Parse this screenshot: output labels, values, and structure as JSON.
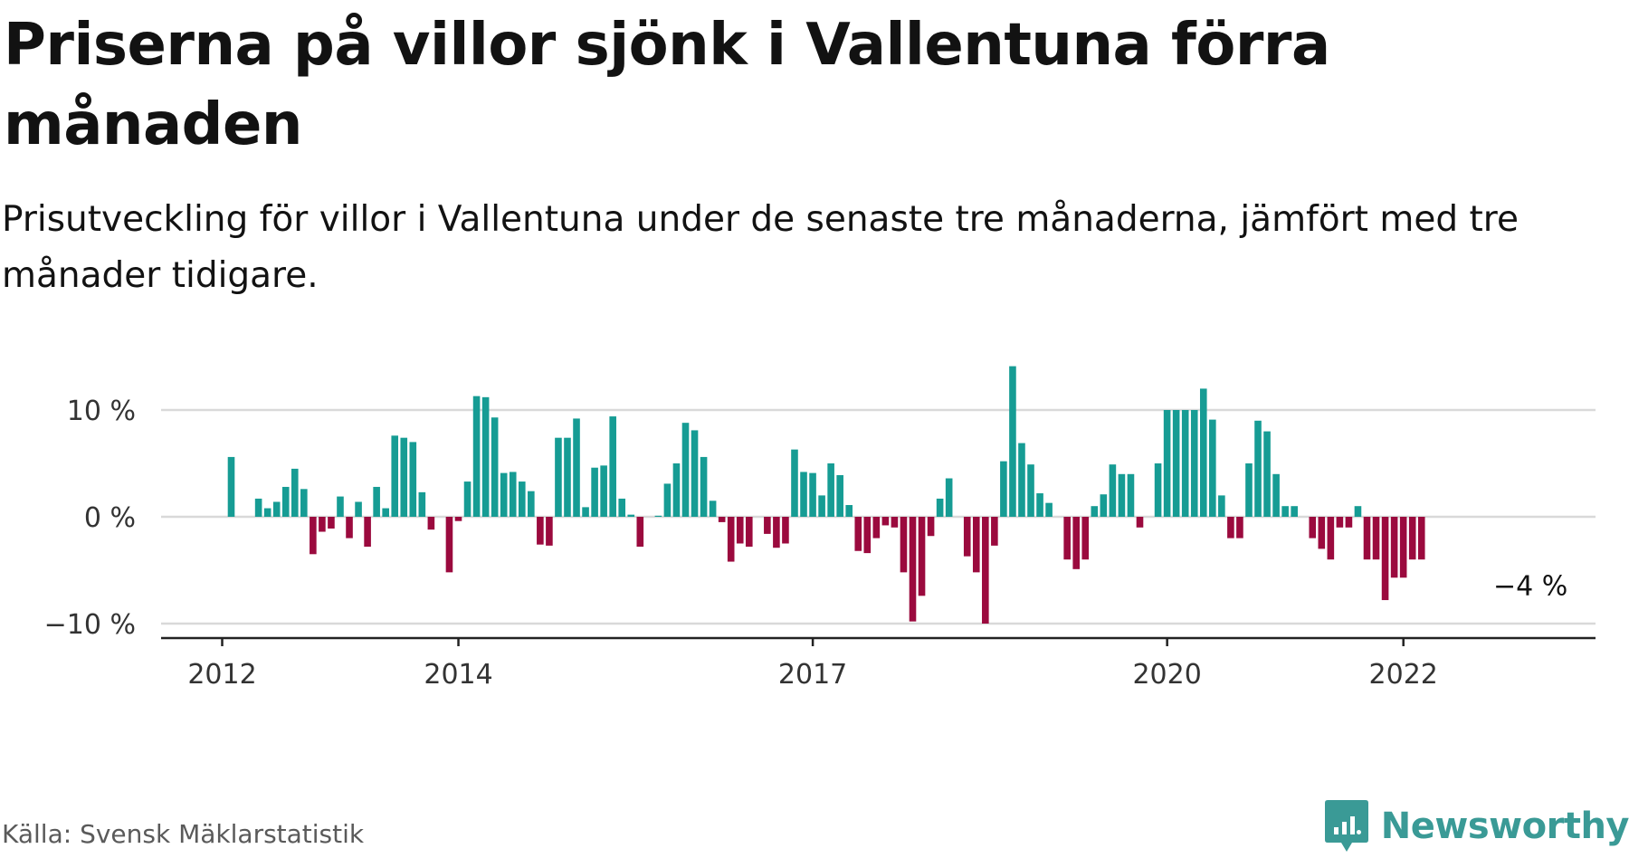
{
  "title": "Priserna på villor sjönk i Vallentuna förra månaden",
  "subtitle": "Prisutveckling för villor i Vallentuna under de senaste tre månaderna, jämfört med tre månader tidigare.",
  "source": "Källa: Svensk Mäklarstatistik",
  "brand": {
    "name": "Newsworthy",
    "icon": "newsworthy-logo-icon"
  },
  "colors": {
    "positive": "#169c94",
    "negative": "#9b0a3e",
    "grid": "#d9d9d9",
    "axis": "#222222",
    "brand": "#3a9a96"
  },
  "chart_data": {
    "type": "bar",
    "ylim": [
      -11.5,
      15
    ],
    "y_ticks": [
      {
        "value": 10,
        "label": "10 %"
      },
      {
        "value": 0,
        "label": "0 %"
      },
      {
        "value": -10,
        "label": "−10 %"
      }
    ],
    "x_ticks": [
      {
        "index": 0,
        "label": "2012"
      },
      {
        "index": 26,
        "label": "2014"
      },
      {
        "index": 65,
        "label": "2017"
      },
      {
        "index": 104,
        "label": "2020"
      },
      {
        "index": 130,
        "label": "2022"
      }
    ],
    "annotation": {
      "index": 139,
      "label": "−4 %"
    },
    "grid": true,
    "values": [
      5.6,
      null,
      null,
      1.7,
      0.8,
      1.4,
      2.8,
      4.5,
      2.6,
      -3.5,
      -1.4,
      -1.1,
      1.9,
      -2.0,
      1.4,
      -2.8,
      2.8,
      0.8,
      7.6,
      7.4,
      7.0,
      2.3,
      -1.2,
      null,
      -5.2,
      -0.4,
      3.3,
      11.3,
      11.2,
      9.3,
      4.1,
      4.2,
      3.3,
      2.4,
      -2.6,
      -2.7,
      7.4,
      7.4,
      9.2,
      0.9,
      4.6,
      4.8,
      9.4,
      1.7,
      0.2,
      -2.8,
      null,
      0.1,
      3.1,
      5.0,
      8.8,
      8.1,
      5.6,
      1.5,
      -0.5,
      -4.2,
      -2.5,
      -2.8,
      null,
      -1.6,
      -2.9,
      -2.5,
      6.3,
      4.2,
      4.1,
      2.0,
      5.0,
      3.9,
      1.1,
      -3.2,
      -3.4,
      -2.0,
      -0.8,
      -1.0,
      -5.2,
      -9.8,
      -7.4,
      -1.8,
      1.7,
      3.6,
      null,
      -3.7,
      -5.2,
      -10.0,
      -2.7,
      5.2,
      14.1,
      6.9,
      4.9,
      2.2,
      1.3,
      null,
      -4.0,
      -4.9,
      -4.0,
      1.0,
      2.1,
      4.9,
      4.0,
      4.0,
      -1.0,
      null,
      5.0,
      10.0,
      10.0,
      10.0,
      10.0,
      12.0,
      9.1,
      2.0,
      -2.0,
      -2.0,
      5.0,
      9.0,
      8.0,
      4.0,
      1.0,
      1.0,
      null,
      -2.0,
      -3.0,
      -4.0,
      -1.0,
      -1.0,
      1.0,
      -4.0,
      -4.0,
      -7.8,
      -5.7,
      -5.7,
      -4.0,
      -4.0
    ]
  }
}
